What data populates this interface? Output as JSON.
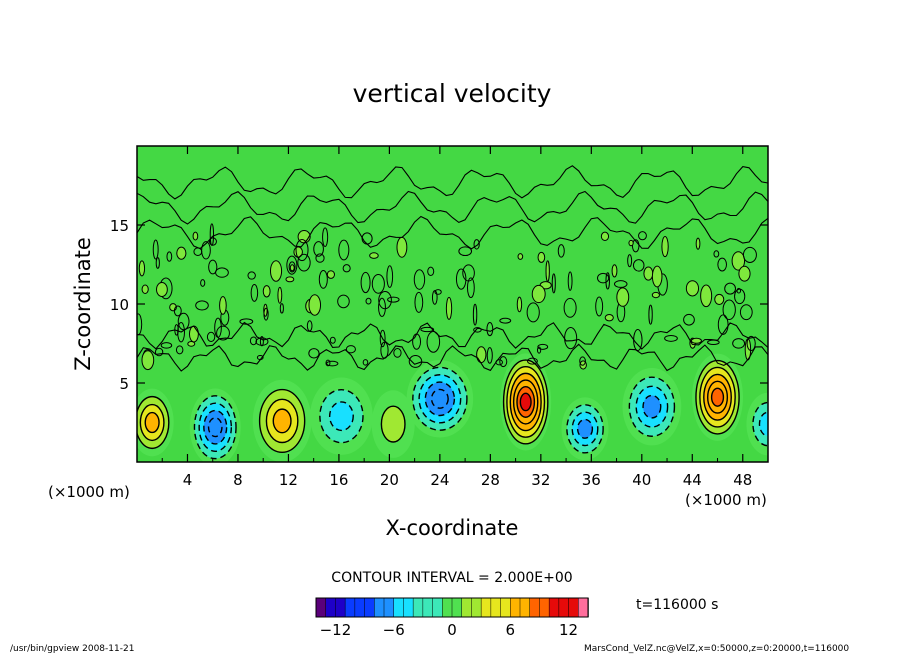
{
  "chart_data": {
    "type": "heatmap",
    "title": "vertical velocity",
    "xlabel": "X-coordinate",
    "ylabel": "Z-coordinate",
    "x_unit_label": "(×1000 m)",
    "y_unit_label": "(×1000 m)",
    "xlim": [
      0,
      50
    ],
    "ylim": [
      0,
      20
    ],
    "x_ticks": [
      4,
      8,
      12,
      16,
      20,
      24,
      28,
      32,
      36,
      40,
      44,
      48
    ],
    "y_ticks": [
      5,
      10,
      15
    ],
    "contour_interval_label": "CONTOUR INTERVAL = 2.000E+00",
    "contour_interval": 2.0,
    "time_label": "t=116000 s",
    "colorbar": {
      "range": [
        -14,
        14
      ],
      "ticks": [
        -12,
        -6,
        0,
        6,
        12
      ],
      "colors": [
        "#5a007a",
        "#1e00c8",
        "#0a3cff",
        "#1e90ff",
        "#18e0ff",
        "#3ce8b8",
        "#50e050",
        "#a0e832",
        "#e6e61e",
        "#ffb400",
        "#ff6400",
        "#e60a0a",
        "#ff6e9c"
      ]
    },
    "cells": [
      {
        "x": 1.2,
        "z": 2.5,
        "value": 7.5,
        "sx": 1.0,
        "sz": 1.3
      },
      {
        "x": 6.2,
        "z": 2.2,
        "value": -8.0,
        "sx": 1.2,
        "sz": 1.5
      },
      {
        "x": 11.5,
        "z": 2.6,
        "value": 6.0,
        "sx": 1.4,
        "sz": 1.6
      },
      {
        "x": 16.2,
        "z": 2.9,
        "value": -4.5,
        "sx": 1.5,
        "sz": 1.5
      },
      {
        "x": 20.3,
        "z": 2.4,
        "value": 2.5,
        "sx": 1.0,
        "sz": 1.3
      },
      {
        "x": 24.0,
        "z": 4.0,
        "value": -8.5,
        "sx": 1.6,
        "sz": 1.5
      },
      {
        "x": 30.8,
        "z": 3.8,
        "value": 12.5,
        "sx": 1.2,
        "sz": 1.9
      },
      {
        "x": 35.5,
        "z": 2.1,
        "value": -7.5,
        "sx": 1.1,
        "sz": 1.2
      },
      {
        "x": 40.8,
        "z": 3.5,
        "value": -7.0,
        "sx": 1.4,
        "sz": 1.5
      },
      {
        "x": 46.0,
        "z": 4.1,
        "value": 11.0,
        "sx": 1.2,
        "sz": 1.7
      },
      {
        "x": 50.0,
        "z": 2.4,
        "value": -4.0,
        "sx": 1.0,
        "sz": 1.2
      }
    ]
  },
  "footer": {
    "left": "/usr/bin/gpview   2008-11-21",
    "right": "MarsCond_VelZ.nc@VelZ,x=0:50000,z=0:20000,t=116000"
  }
}
